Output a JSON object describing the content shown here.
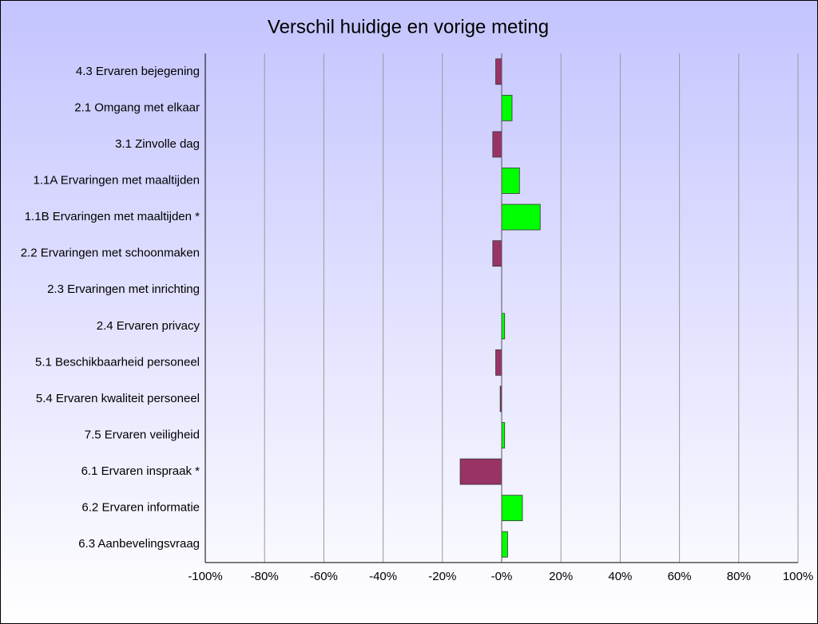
{
  "chart_data": {
    "type": "bar",
    "orientation": "horizontal",
    "title": "Verschil huidige en vorige meting",
    "categories": [
      "4.3 Ervaren bejegening",
      "2.1 Omgang met elkaar",
      "3.1 Zinvolle dag",
      "1.1A Ervaringen met maaltijden",
      "1.1B Ervaringen met maaltijden *",
      "2.2 Ervaringen met schoonmaken",
      "2.3 Ervaringen met inrichting",
      "2.4 Ervaren privacy",
      "5.1 Beschikbaarheid personeel",
      "5.4 Ervaren kwaliteit personeel",
      "7.5 Ervaren veiligheid",
      "6.1 Ervaren inspraak *",
      "6.2 Ervaren informatie",
      "6.3 Aanbevelingsvraag"
    ],
    "values": [
      -2,
      3.5,
      -3,
      6,
      13,
      -3,
      0,
      1,
      -2,
      -0.5,
      1,
      -14,
      7,
      2
    ],
    "positive_color": "#00ff00",
    "negative_color": "#993366",
    "xlim": [
      -100,
      100
    ],
    "xticks": [
      {
        "value": -100,
        "label": "-100%"
      },
      {
        "value": -80,
        "label": "-80%"
      },
      {
        "value": -60,
        "label": "-60%"
      },
      {
        "value": -40,
        "label": "-40%"
      },
      {
        "value": -20,
        "label": "-20%"
      },
      {
        "value": 0,
        "label": "-0%"
      },
      {
        "value": 20,
        "label": "20%"
      },
      {
        "value": 40,
        "label": "40%"
      },
      {
        "value": 60,
        "label": "60%"
      },
      {
        "value": 80,
        "label": "80%"
      },
      {
        "value": 100,
        "label": "100%"
      }
    ],
    "grid": true
  }
}
